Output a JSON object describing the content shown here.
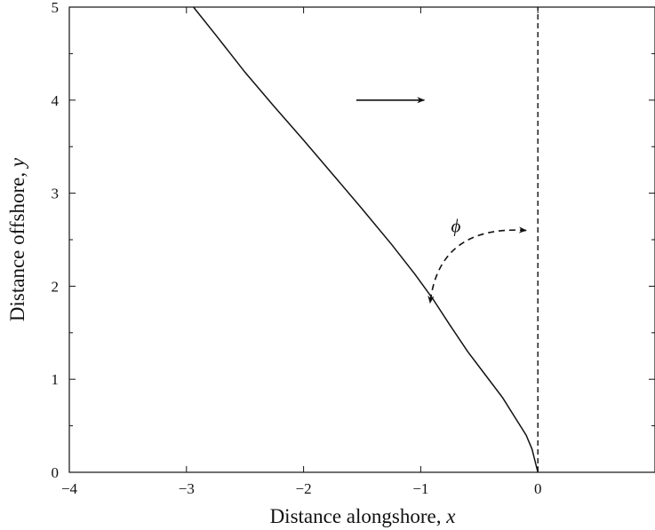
{
  "chart_data": {
    "type": "line",
    "title": "",
    "xlabel": "Distance alongshore, ",
    "xlabel_var": "x",
    "ylabel": "Distance offshore, ",
    "ylabel_var": "y",
    "xlim": [
      -4,
      1
    ],
    "ylim": [
      0,
      5
    ],
    "x_ticks": [
      -4,
      -3,
      -2,
      -1,
      0
    ],
    "x_tick_labels": [
      "−4",
      "−3",
      "−2",
      "−1",
      "0"
    ],
    "y_ticks": [
      0,
      1,
      2,
      3,
      4,
      5
    ],
    "y_tick_labels": [
      "0",
      "1",
      "2",
      "3",
      "4",
      "5"
    ],
    "grid": false,
    "series": [
      {
        "style": "solid",
        "x": [
          0,
          -0.05,
          -0.1,
          -0.2,
          -0.3,
          -0.45,
          -0.6,
          -0.75,
          -0.9,
          -1.05,
          -1.25,
          -1.5,
          -1.75,
          -2.0,
          -2.25,
          -2.5,
          -2.75,
          -2.94
        ],
        "y": [
          0,
          0.25,
          0.4,
          0.6,
          0.8,
          1.05,
          1.3,
          1.58,
          1.87,
          2.13,
          2.45,
          2.83,
          3.2,
          3.57,
          3.93,
          4.3,
          4.7,
          5.0
        ]
      },
      {
        "style": "dashed",
        "x": [
          0,
          0
        ],
        "y": [
          0,
          5
        ]
      }
    ],
    "annotations": [
      {
        "type": "arrow",
        "style": "solid",
        "from": [
          -1.55,
          4.0
        ],
        "to": [
          -0.97,
          4.0
        ]
      },
      {
        "type": "curved-arrow",
        "style": "dashed",
        "from": [
          -0.1,
          2.6
        ],
        "to": [
          -0.92,
          1.82
        ],
        "label": "ϕ",
        "label_at": [
          -0.7,
          2.58
        ]
      }
    ]
  }
}
